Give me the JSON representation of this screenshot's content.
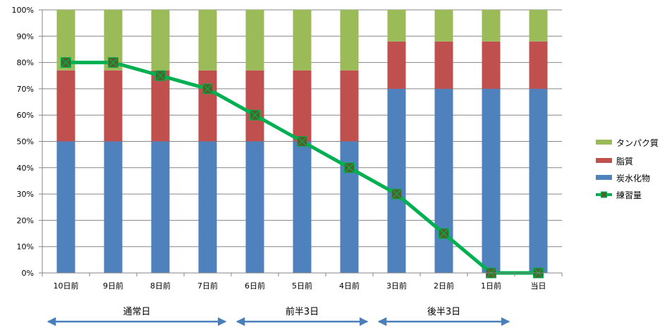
{
  "chart_data": {
    "type": "bar",
    "stacked": "percent",
    "categories": [
      "10日前",
      "9日前",
      "8日前",
      "7日前",
      "6日前",
      "5日前",
      "4日前",
      "3日前",
      "2日前",
      "1日前",
      "当日"
    ],
    "y_ticks": [
      "0%",
      "10%",
      "20%",
      "30%",
      "40%",
      "50%",
      "60%",
      "70%",
      "80%",
      "90%",
      "100%"
    ],
    "ylim": [
      0,
      100
    ],
    "grid": true,
    "legend_position": "right",
    "series": [
      {
        "name": "炭水化物",
        "kind": "bar",
        "color": "#4f81bd",
        "values": [
          50,
          50,
          50,
          50,
          50,
          50,
          50,
          70,
          70,
          70,
          70
        ]
      },
      {
        "name": "脂質",
        "kind": "bar",
        "color": "#c0504d",
        "values": [
          27,
          27,
          27,
          27,
          27,
          27,
          27,
          18,
          18,
          18,
          18
        ]
      },
      {
        "name": "タンパク質",
        "kind": "bar",
        "color": "#9bbb59",
        "values": [
          23,
          23,
          23,
          23,
          23,
          23,
          23,
          12,
          12,
          12,
          12
        ]
      },
      {
        "name": "練習量",
        "kind": "line",
        "color": "#00b050",
        "marker_color": "#4f6228",
        "values": [
          80,
          80,
          75,
          70,
          60,
          50,
          40,
          30,
          15,
          0,
          0
        ]
      }
    ],
    "legend_order": [
      "タンパク質",
      "脂質",
      "炭水化物",
      "練習量"
    ],
    "phases": [
      {
        "label": "通常日",
        "from": "10日前",
        "to": "7日前"
      },
      {
        "label": "前半3日",
        "from": "6日前",
        "to": "4日前"
      },
      {
        "label": "後半3日",
        "from": "3日前",
        "to": "1日前"
      }
    ],
    "arrow_color": "#4a7ebb"
  }
}
